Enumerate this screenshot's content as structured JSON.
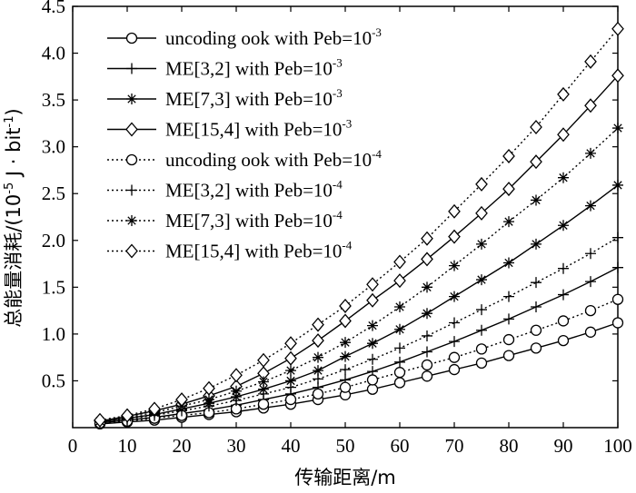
{
  "chart_data": {
    "type": "line",
    "xlabel": "传输距离/m",
    "ylabel": {
      "prefix": "总能量消耗/(10",
      "exp1": "-5",
      "mid": " J · bit",
      "exp2": "-1",
      "suffix": ")"
    },
    "xlim": [
      0,
      100
    ],
    "ylim": [
      0,
      4.5
    ],
    "xticks": [
      0,
      10,
      20,
      30,
      40,
      50,
      60,
      70,
      80,
      90,
      100
    ],
    "yticks": [
      0.5,
      1.0,
      1.5,
      2.0,
      2.5,
      3.0,
      3.5,
      4.0,
      4.5
    ],
    "ytick_labels": [
      "0.5",
      "1.0",
      "1.5",
      "2.0",
      "2.5",
      "3.0",
      "3.5",
      "4.0",
      "4.5"
    ],
    "x": [
      5,
      10,
      15,
      20,
      25,
      30,
      35,
      40,
      45,
      50,
      55,
      60,
      65,
      70,
      75,
      80,
      85,
      90,
      95,
      100
    ],
    "series": [
      {
        "name": "uncoding ook with Peb=10-3",
        "label_main": "uncoding ook with Peb=10",
        "label_exp": "-3",
        "linestyle": "solid",
        "marker": "circle",
        "values": [
          0.04,
          0.06,
          0.08,
          0.11,
          0.14,
          0.17,
          0.21,
          0.25,
          0.3,
          0.35,
          0.41,
          0.48,
          0.55,
          0.62,
          0.69,
          0.77,
          0.85,
          0.93,
          1.02,
          1.12
        ]
      },
      {
        "name": "ME[3,2] with Peb=10-3",
        "label_main": "ME[3,2] with Peb=10",
        "label_exp": "-3",
        "linestyle": "solid",
        "marker": "plus",
        "values": [
          0.05,
          0.08,
          0.11,
          0.15,
          0.19,
          0.24,
          0.3,
          0.36,
          0.43,
          0.51,
          0.6,
          0.7,
          0.81,
          0.92,
          1.04,
          1.16,
          1.29,
          1.42,
          1.56,
          1.71
        ]
      },
      {
        "name": "ME[7,3] with Peb=10-3",
        "label_main": "ME[7,3] with Peb=10",
        "label_exp": "-3",
        "linestyle": "solid",
        "marker": "star",
        "values": [
          0.06,
          0.1,
          0.14,
          0.2,
          0.26,
          0.33,
          0.41,
          0.5,
          0.61,
          0.76,
          0.9,
          1.05,
          1.22,
          1.4,
          1.58,
          1.76,
          1.96,
          2.16,
          2.37,
          2.59
        ]
      },
      {
        "name": "ME[15,4] with Peb=10-3",
        "label_main": "ME[15,4] with Peb=10",
        "label_exp": "-3",
        "linestyle": "solid",
        "marker": "diamond",
        "values": [
          0.07,
          0.12,
          0.18,
          0.25,
          0.34,
          0.44,
          0.58,
          0.74,
          0.93,
          1.14,
          1.36,
          1.57,
          1.8,
          2.04,
          2.29,
          2.55,
          2.84,
          3.13,
          3.44,
          3.76
        ]
      },
      {
        "name": "uncoding ook with Peb=10-4",
        "label_main": "uncoding ook with Peb=10",
        "label_exp": "-4",
        "linestyle": "dotted",
        "marker": "circle",
        "values": [
          0.05,
          0.07,
          0.1,
          0.13,
          0.16,
          0.2,
          0.25,
          0.3,
          0.36,
          0.43,
          0.51,
          0.59,
          0.67,
          0.75,
          0.84,
          0.94,
          1.04,
          1.14,
          1.25,
          1.37
        ]
      },
      {
        "name": "ME[3,2] with Peb=10-4",
        "label_main": "ME[3,2] with Peb=10",
        "label_exp": "-4",
        "linestyle": "dotted",
        "marker": "plus",
        "values": [
          0.06,
          0.09,
          0.13,
          0.18,
          0.23,
          0.29,
          0.36,
          0.43,
          0.52,
          0.62,
          0.73,
          0.85,
          0.98,
          1.12,
          1.26,
          1.4,
          1.55,
          1.7,
          1.86,
          2.03
        ]
      },
      {
        "name": "ME[7,3] with Peb=10-4",
        "label_main": "ME[7,3] with Peb=10",
        "label_exp": "-4",
        "linestyle": "dotted",
        "marker": "star",
        "values": [
          0.07,
          0.11,
          0.16,
          0.23,
          0.3,
          0.39,
          0.49,
          0.61,
          0.75,
          0.91,
          1.09,
          1.29,
          1.5,
          1.73,
          1.96,
          2.2,
          2.43,
          2.67,
          2.93,
          3.2
        ]
      },
      {
        "name": "ME[15,4] with Peb=10-4",
        "label_main": "ME[15,4] with Peb=10",
        "label_exp": "-4",
        "linestyle": "dotted",
        "marker": "diamond",
        "values": [
          0.08,
          0.13,
          0.2,
          0.3,
          0.42,
          0.56,
          0.72,
          0.9,
          1.1,
          1.3,
          1.53,
          1.77,
          2.02,
          2.31,
          2.6,
          2.9,
          3.21,
          3.56,
          3.91,
          4.26
        ]
      }
    ],
    "legend_position": "top-left"
  }
}
